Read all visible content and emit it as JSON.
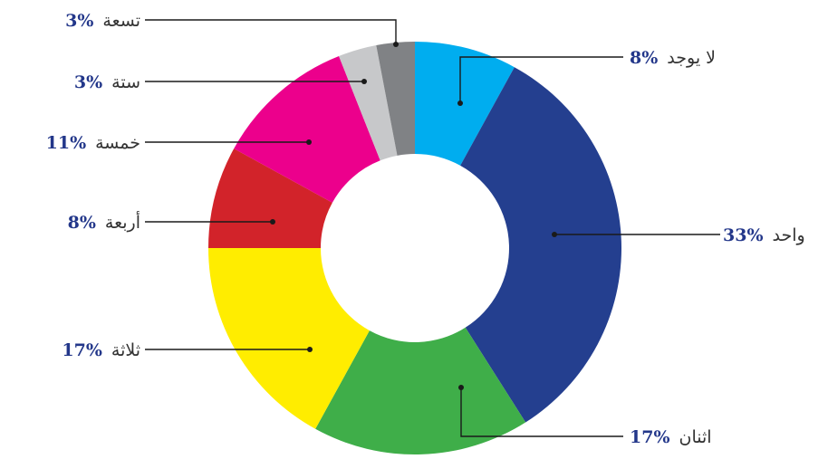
{
  "chart_data": {
    "type": "pie",
    "subtype": "donut",
    "slices": [
      {
        "label": "لا يوجد",
        "pct_text": "8%",
        "value": 8,
        "color": "#00adef"
      },
      {
        "label": "واحد",
        "pct_text": "33%",
        "value": 33,
        "color": "#243f8f"
      },
      {
        "label": "اثنان",
        "pct_text": "17%",
        "value": 17,
        "color": "#3fae49"
      },
      {
        "label": "ثلاثة",
        "pct_text": "17%",
        "value": 17,
        "color": "#ffed00"
      },
      {
        "label": "أربعة",
        "pct_text": "8%",
        "value": 8,
        "color": "#d2232a"
      },
      {
        "label": "خمسة",
        "pct_text": "11%",
        "value": 11,
        "color": "#ec008c"
      },
      {
        "label": "ستة",
        "pct_text": "3%",
        "value": 3,
        "color": "#c7c8ca"
      },
      {
        "label": "تسعة",
        "pct_text": "3%",
        "value": 3,
        "color": "#808285"
      }
    ]
  }
}
